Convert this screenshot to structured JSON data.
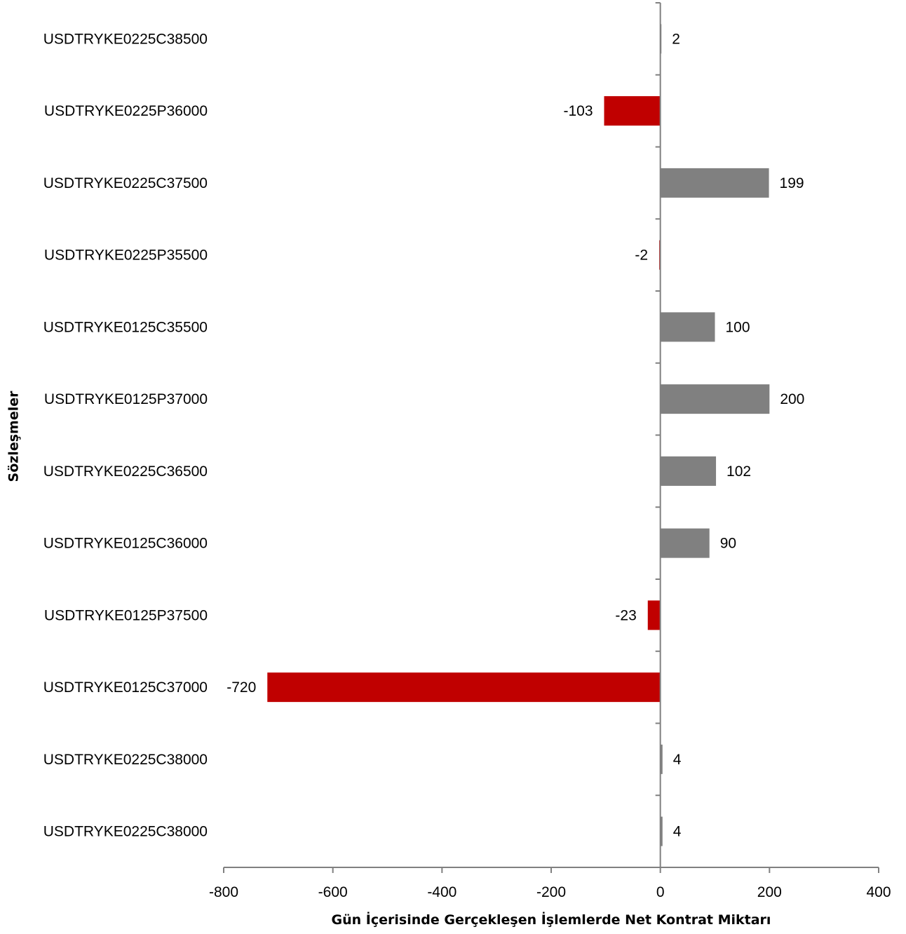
{
  "chart_data": {
    "type": "bar",
    "orientation": "horizontal",
    "categories": [
      "USDTRYKE0225C38500",
      "USDTRYKE0225P36000",
      "USDTRYKE0225C37500",
      "USDTRYKE0225P35500",
      "USDTRYKE0125C35500",
      "USDTRYKE0125P37000",
      "USDTRYKE0225C36500",
      "USDTRYKE0125C36000",
      "USDTRYKE0125P37500",
      "USDTRYKE0125C37000",
      "USDTRYKE0225C38000",
      "USDTRYKE0225C38000"
    ],
    "values": [
      2,
      -103,
      199,
      -2,
      100,
      200,
      102,
      90,
      -23,
      -720,
      4,
      4
    ],
    "data_labels": [
      "2",
      "-103",
      "199",
      "-2",
      "100",
      "200",
      "102",
      "90",
      "-23",
      "-720",
      "4",
      "4"
    ],
    "title": "",
    "xlabel": "Gün İçerisinde Gerçekleşen İşlemlerde Net Kontrat Miktarı",
    "ylabel": "Sözleşmeler",
    "xlim": [
      -800,
      400
    ],
    "x_ticks": [
      -800,
      -600,
      -400,
      -200,
      0,
      200,
      400
    ],
    "x_tick_labels": [
      "-800",
      "-600",
      "-400",
      "-200",
      "0",
      "200",
      "400"
    ],
    "grid": false,
    "legend": "none",
    "colors": {
      "positive": "#808080",
      "negative": "#c00000",
      "axis": "#808080",
      "text": "#000000"
    }
  }
}
